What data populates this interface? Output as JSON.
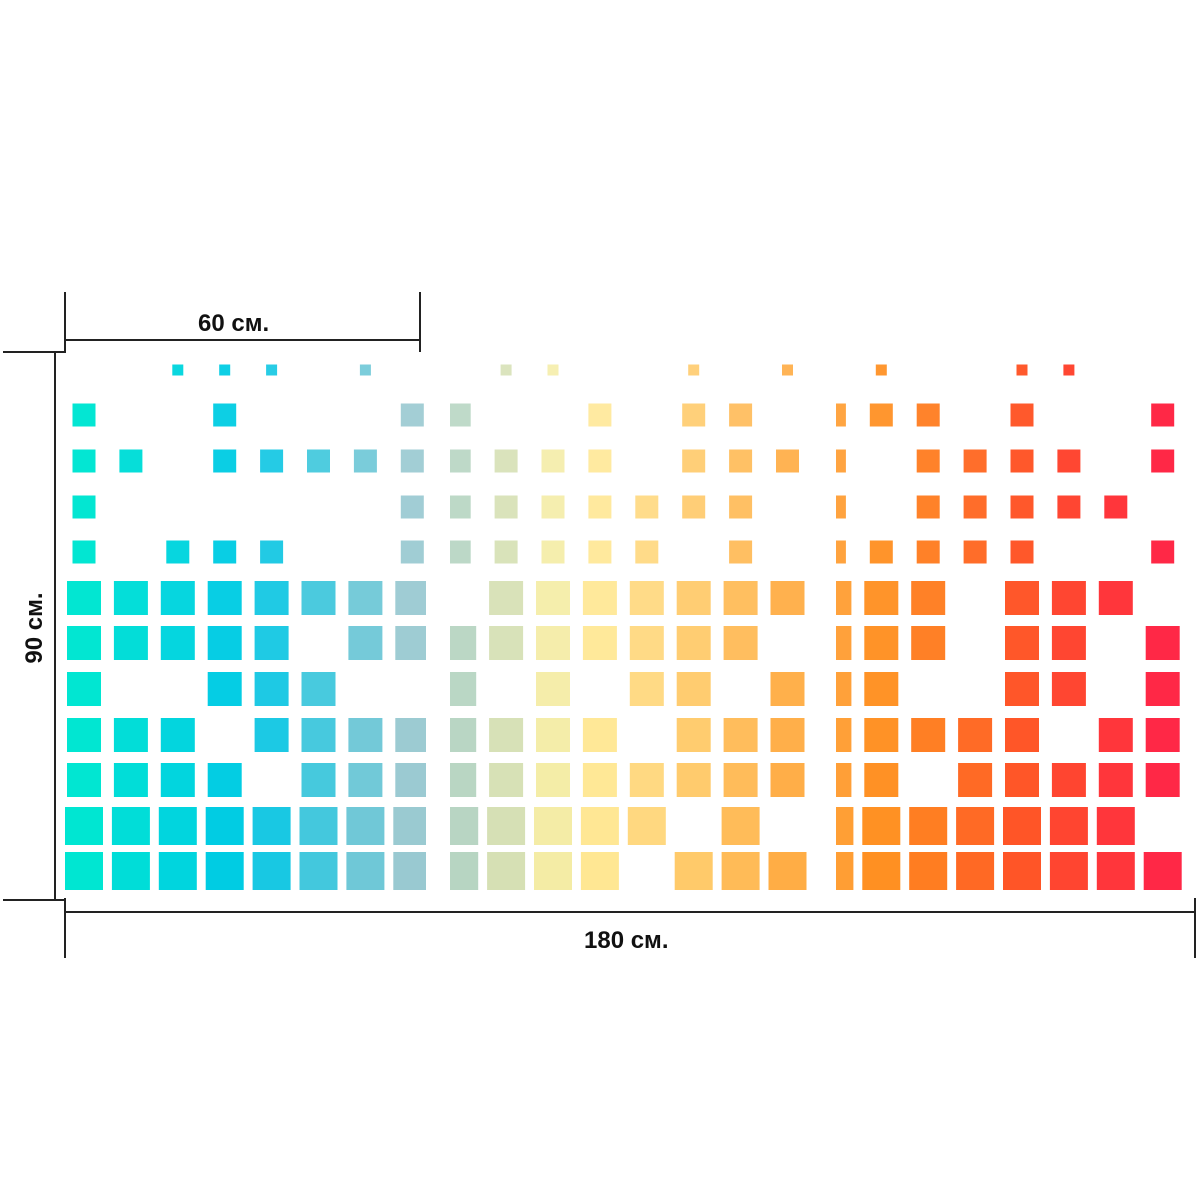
{
  "dimensions": {
    "panel_width": "60 см.",
    "total_width": "180 см.",
    "height": "90 см."
  },
  "artwork": {
    "description_colors": {
      "start": "#00e8d0",
      "middle": "#ffef9a",
      "end": "#ff2d3a"
    },
    "panel_count": 3
  }
}
